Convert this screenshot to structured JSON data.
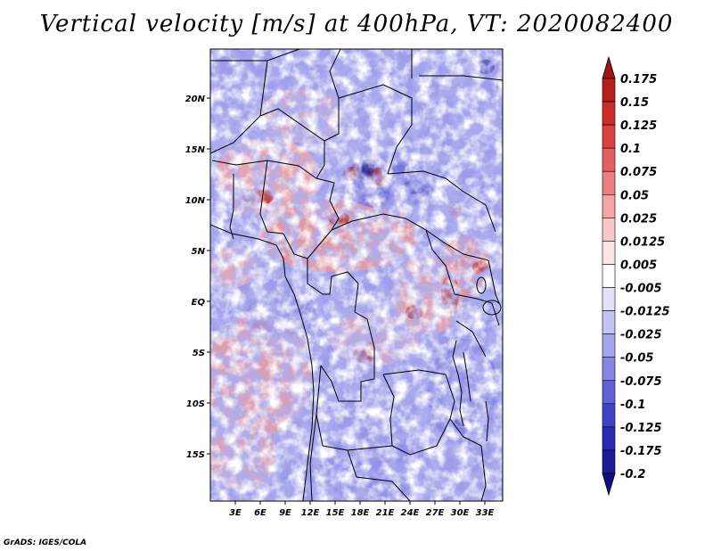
{
  "title": "Vertical velocity [m/s] at 400hPa, VT: 2020082400",
  "credit": "GrADS: IGES/COLA",
  "map": {
    "lat_labels": [
      "20N",
      "15N",
      "10N",
      "5N",
      "EQ",
      "5S",
      "10S",
      "15S"
    ],
    "lon_labels": [
      "3E",
      "6E",
      "9E",
      "12E",
      "15E",
      "18E",
      "21E",
      "24E",
      "27E",
      "30E",
      "33E"
    ]
  },
  "colorbar": {
    "labels": [
      "0.175",
      "0.15",
      "0.125",
      "0.1",
      "0.075",
      "0.05",
      "0.025",
      "0.0125",
      "0.005",
      "-0.005",
      "-0.0125",
      "-0.025",
      "-0.05",
      "-0.075",
      "-0.1",
      "-0.125",
      "-0.175",
      "-0.2"
    ],
    "colors": [
      "#a01414",
      "#b91e1e",
      "#cc2c2c",
      "#dc4040",
      "#e46060",
      "#ec8080",
      "#f4a4a4",
      "#f8c8c8",
      "#fce6e6",
      "#ffffff",
      "#e2e2fa",
      "#c4c4f4",
      "#a6a6ec",
      "#8686e2",
      "#6262d8",
      "#4242c8",
      "#2a2ab4",
      "#1a1a98",
      "#10107c"
    ]
  }
}
